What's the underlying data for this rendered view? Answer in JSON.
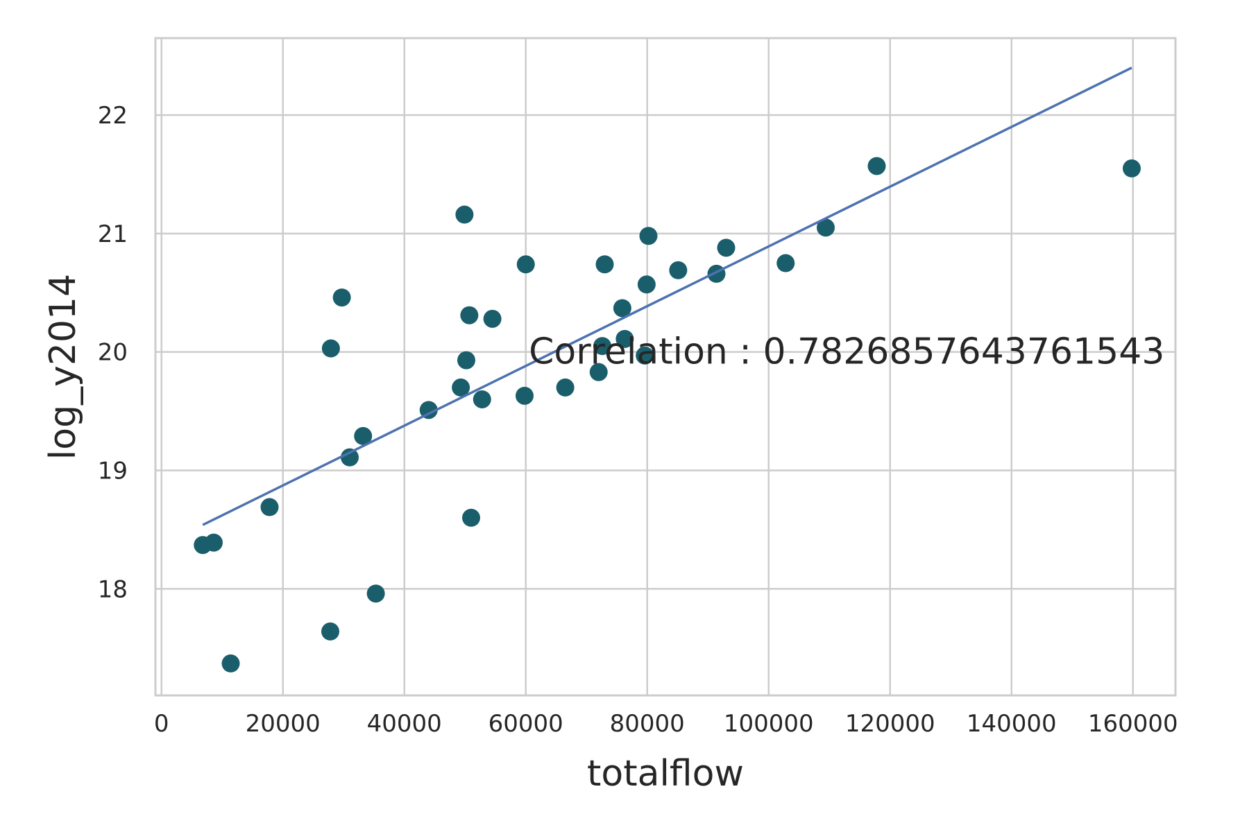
{
  "chart_data": {
    "type": "scatter",
    "title": "",
    "xlabel": "totalflow",
    "ylabel": "log_y2014",
    "xlim": [
      -1000,
      167000
    ],
    "ylim": [
      17.1,
      22.65
    ],
    "xticks": [
      0,
      20000,
      40000,
      60000,
      80000,
      100000,
      120000,
      140000,
      160000
    ],
    "xtick_labels": [
      "0",
      "20000",
      "40000",
      "60000",
      "80000",
      "100000",
      "120000",
      "140000",
      "160000"
    ],
    "yticks": [
      18,
      19,
      20,
      21,
      22
    ],
    "ytick_labels": [
      "18",
      "19",
      "20",
      "21",
      "22"
    ],
    "grid": true,
    "annotation": {
      "text": "Correlation : 0.7826857643761543",
      "x": 60500,
      "y": 20
    },
    "colors": {
      "points": "#1b5e6b",
      "fit_line": "#4c72b0",
      "grid": "#cccccc",
      "frame": "#cccccc",
      "text": "#262626"
    },
    "series": [
      {
        "type": "scatter",
        "points": [
          {
            "x": 6800,
            "y": 18.37
          },
          {
            "x": 8600,
            "y": 18.39
          },
          {
            "x": 11400,
            "y": 17.37
          },
          {
            "x": 17800,
            "y": 18.69
          },
          {
            "x": 27800,
            "y": 17.64
          },
          {
            "x": 27900,
            "y": 20.03
          },
          {
            "x": 29700,
            "y": 20.46
          },
          {
            "x": 31000,
            "y": 19.11
          },
          {
            "x": 33200,
            "y": 19.29
          },
          {
            "x": 35300,
            "y": 17.96
          },
          {
            "x": 44000,
            "y": 19.51
          },
          {
            "x": 49300,
            "y": 19.7
          },
          {
            "x": 49900,
            "y": 21.16
          },
          {
            "x": 50200,
            "y": 19.93
          },
          {
            "x": 50700,
            "y": 20.31
          },
          {
            "x": 51000,
            "y": 18.6
          },
          {
            "x": 52800,
            "y": 19.6
          },
          {
            "x": 54500,
            "y": 20.28
          },
          {
            "x": 59800,
            "y": 19.63
          },
          {
            "x": 60000,
            "y": 20.74
          },
          {
            "x": 66500,
            "y": 19.7
          },
          {
            "x": 72000,
            "y": 19.83
          },
          {
            "x": 72600,
            "y": 20.05
          },
          {
            "x": 73000,
            "y": 20.74
          },
          {
            "x": 75900,
            "y": 20.37
          },
          {
            "x": 76300,
            "y": 20.11
          },
          {
            "x": 79600,
            "y": 19.97
          },
          {
            "x": 79900,
            "y": 20.57
          },
          {
            "x": 80200,
            "y": 20.98
          },
          {
            "x": 85100,
            "y": 20.69
          },
          {
            "x": 91400,
            "y": 20.66
          },
          {
            "x": 93000,
            "y": 20.88
          },
          {
            "x": 102800,
            "y": 20.75
          },
          {
            "x": 109400,
            "y": 21.05
          },
          {
            "x": 117800,
            "y": 21.57
          },
          {
            "x": 159800,
            "y": 21.55
          }
        ]
      },
      {
        "type": "line",
        "points": [
          {
            "x": 6800,
            "y": 18.54
          },
          {
            "x": 159800,
            "y": 22.4
          }
        ]
      }
    ]
  }
}
